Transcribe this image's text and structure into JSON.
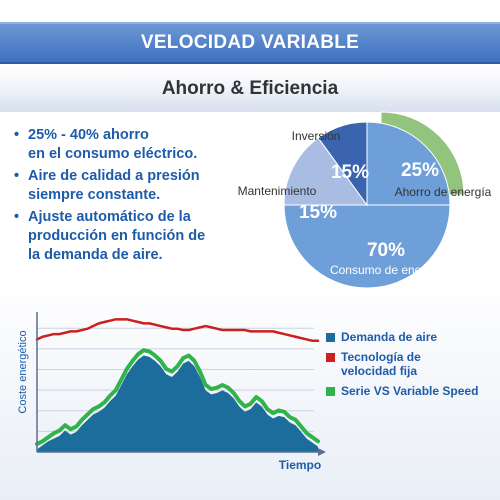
{
  "header": {
    "title": "VELOCIDAD VARIABLE"
  },
  "subtitle": "Ahorro & Eficiencia",
  "bullets": [
    "25% - 40% ahorro\nen el consumo eléctrico.",
    "Aire de calidad a presión\nsiempre constante.",
    "Ajuste automático de la\nproducción en función de\nla demanda de aire."
  ],
  "colors": {
    "header": "#4a7cc4",
    "text_blue": "#1e5ba8",
    "pie_investment": "#3a64ad",
    "pie_maintenance": "#a9bde3",
    "pie_energy": "#6f9fd8",
    "pie_savings": "#93c47d",
    "demand_fill": "#1c6c9c",
    "fixed_speed": "#cc1f1f",
    "variable_speed": "#2fb34a"
  },
  "chart_data": [
    {
      "type": "pie",
      "labels": [
        "Inversión",
        "Mantenimiento",
        "Consumo de energía",
        "Ahorro de energía"
      ],
      "values": [
        15,
        15,
        70,
        25
      ],
      "value_labels": [
        "15%",
        "15%",
        "70%",
        "25%"
      ],
      "note": "Ahorro de energía wedge is exploded from the energy-consumption wedge"
    },
    {
      "type": "area",
      "xlabel": "Tiempo",
      "ylabel": "Coste energético",
      "x": [
        0,
        2,
        4,
        6,
        8,
        10,
        12,
        14,
        16,
        18,
        20,
        22,
        24,
        26,
        28,
        30,
        32,
        34,
        36,
        38,
        40,
        42,
        44,
        46,
        48,
        50,
        52,
        54,
        56,
        58,
        60,
        62,
        64,
        66,
        68,
        70,
        72,
        74,
        76,
        78,
        80,
        82,
        84,
        86,
        88,
        90,
        92,
        94,
        96,
        98,
        100
      ],
      "series": [
        {
          "name": "Demanda de aire",
          "style": "filled-area",
          "values": [
            2,
            5,
            8,
            10,
            12,
            16,
            13,
            15,
            20,
            24,
            28,
            30,
            33,
            38,
            42,
            50,
            58,
            64,
            69,
            72,
            71,
            68,
            64,
            58,
            56,
            60,
            66,
            68,
            64,
            56,
            46,
            43,
            44,
            46,
            44,
            40,
            34,
            30,
            32,
            37,
            34,
            28,
            25,
            27,
            26,
            22,
            20,
            15,
            10,
            7,
            4
          ]
        },
        {
          "name": "Tecnología de velocidad fija",
          "style": "line",
          "values": [
            84,
            86,
            87,
            88,
            88,
            89,
            90,
            90,
            91,
            92,
            94,
            96,
            97,
            98,
            99,
            99,
            99,
            98,
            97,
            96,
            96,
            95,
            94,
            93,
            92,
            92,
            91,
            91,
            92,
            93,
            94,
            93,
            92,
            91,
            91,
            91,
            91,
            91,
            90,
            90,
            90,
            90,
            90,
            89,
            88,
            87,
            86,
            85,
            84,
            83,
            83
          ]
        },
        {
          "name": "Serie VS Variable Speed",
          "style": "line",
          "values": [
            6,
            8,
            11,
            14,
            16,
            20,
            17,
            19,
            24,
            28,
            32,
            34,
            37,
            42,
            46,
            54,
            62,
            68,
            73,
            76,
            75,
            72,
            68,
            62,
            60,
            64,
            70,
            72,
            68,
            60,
            50,
            47,
            48,
            50,
            48,
            44,
            38,
            34,
            36,
            41,
            38,
            32,
            29,
            31,
            30,
            26,
            24,
            19,
            14,
            11,
            8
          ]
        }
      ],
      "legend": [
        "Demanda de aire",
        "Tecnología de\nvelocidad fija",
        "Serie VS Variable Speed"
      ],
      "legend_placement": "right",
      "grid": true,
      "ylim": [
        0,
        100
      ],
      "xlim": [
        0,
        100
      ]
    }
  ]
}
